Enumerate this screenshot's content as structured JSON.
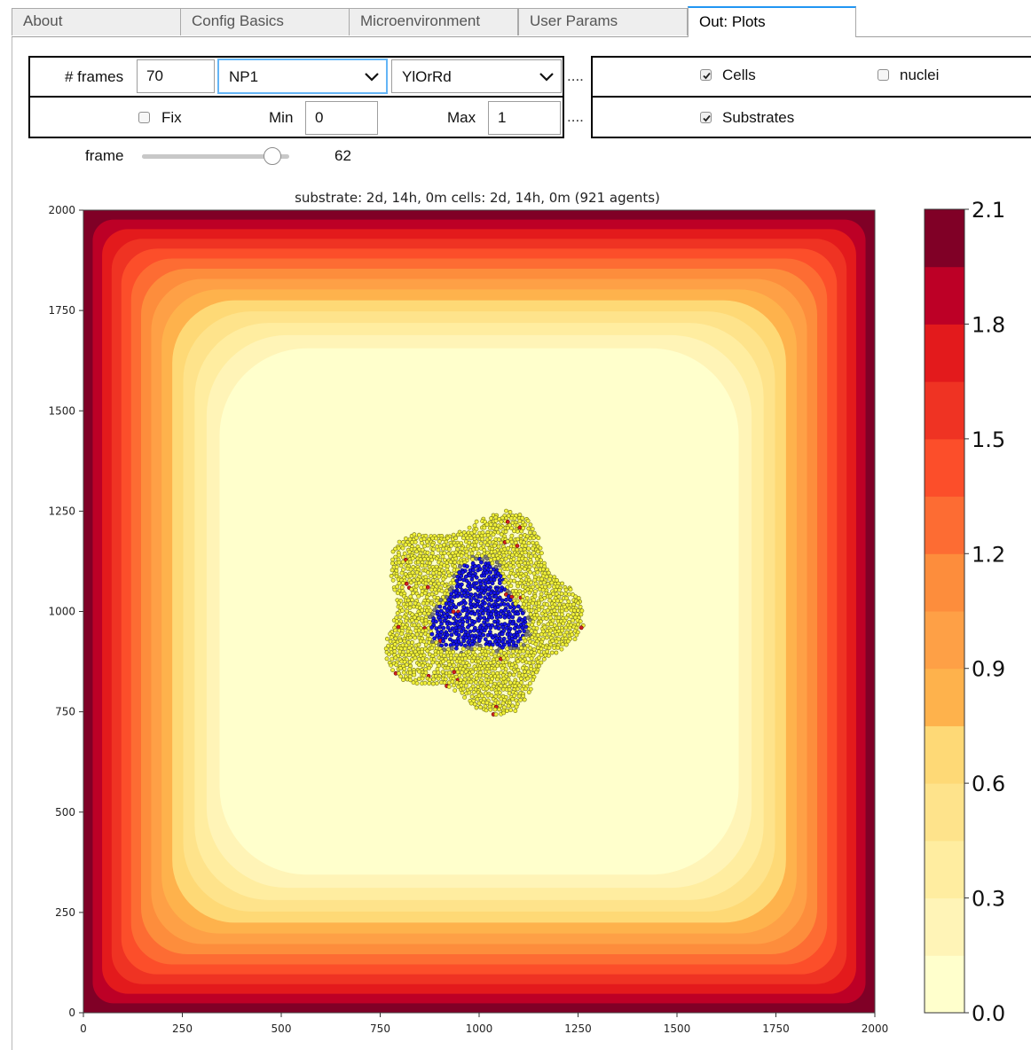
{
  "tabs": [
    {
      "label": "About",
      "active": false
    },
    {
      "label": "Config Basics",
      "active": false
    },
    {
      "label": "Microenvironment",
      "active": false
    },
    {
      "label": "User Params",
      "active": false
    },
    {
      "label": "Out: Plots",
      "active": true
    }
  ],
  "controls": {
    "frames_label": "# frames",
    "frames_value": "70",
    "substrate_select": "NP1",
    "colormap_select": "YlOrRd",
    "dots": "....",
    "fix_label": "Fix",
    "fix_checked": false,
    "min_label": "Min",
    "min_value": "0",
    "max_label": "Max",
    "max_value": "1",
    "cells_label": "Cells",
    "cells_checked": true,
    "nuclei_label": "nuclei",
    "nuclei_checked": false,
    "substrates_label": "Substrates",
    "substrates_checked": true,
    "frame_label": "frame",
    "frame_value": "62",
    "frame_max": 70
  },
  "colors": {
    "accent": "#2196f3",
    "focus": "#64b5f6",
    "cell_live": "#f2f23a",
    "cell_core": "#1414e6",
    "cell_dead": "#7c7c7c",
    "cell_apoptotic": "#d11f1f"
  },
  "chart_data": {
    "type": "heatmap",
    "title": "substrate: 2d, 14h, 0m   cells: 2d, 14h, 0m (921 agents)",
    "x_ticks": [
      0,
      250,
      500,
      750,
      1000,
      1250,
      1500,
      1750,
      2000
    ],
    "y_ticks": [
      0,
      250,
      500,
      750,
      1000,
      1250,
      1500,
      1750,
      2000
    ],
    "xlim": [
      0,
      2000
    ],
    "ylim": [
      0,
      2000
    ],
    "colormap": "YlOrRd",
    "colorbar_ticks": [
      "0.0",
      "0.3",
      "0.6",
      "0.9",
      "1.2",
      "1.5",
      "1.8",
      "2.1"
    ],
    "colorbar_range": [
      0.0,
      2.1
    ],
    "contour_levels": 14,
    "agents_count": 921,
    "cell_cluster": {
      "center": [
        1000,
        1000
      ],
      "outer_radius": 270,
      "core_radius": 120,
      "cell_radius": 10
    }
  }
}
